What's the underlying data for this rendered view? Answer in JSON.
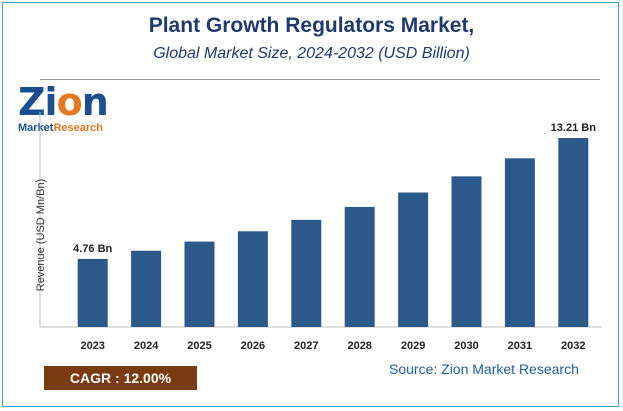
{
  "title": "Plant Growth Regulators Market,",
  "subtitle": "Global Market Size, 2024-2032 (USD Billion)",
  "logo": {
    "word_pre": "Zi",
    "word_o": "o",
    "word_post": "n",
    "sub_pre": "Market",
    "sub_post": "Research",
    "brand_color": "#1a4f8f",
    "accent_color": "#e87722"
  },
  "cagr": {
    "label": "CAGR :  12.00%",
    "color": "#7a3b10"
  },
  "source": "Source: Zion Market Research",
  "chart_data": {
    "type": "bar",
    "categories": [
      "2023",
      "2024",
      "2025",
      "2026",
      "2027",
      "2028",
      "2029",
      "2030",
      "2031",
      "2032"
    ],
    "values": [
      4.76,
      5.33,
      5.97,
      6.69,
      7.49,
      8.39,
      9.4,
      10.53,
      11.79,
      13.21
    ],
    "data_labels": {
      "0": "4.76 Bn",
      "9": "13.21 Bn"
    },
    "xlabel": "",
    "ylabel": "Revenue (USD Mn/Bn)",
    "ylim": [
      0,
      13.21
    ],
    "bar_color": "#2b5a8a",
    "grid": false,
    "legend": "none"
  }
}
